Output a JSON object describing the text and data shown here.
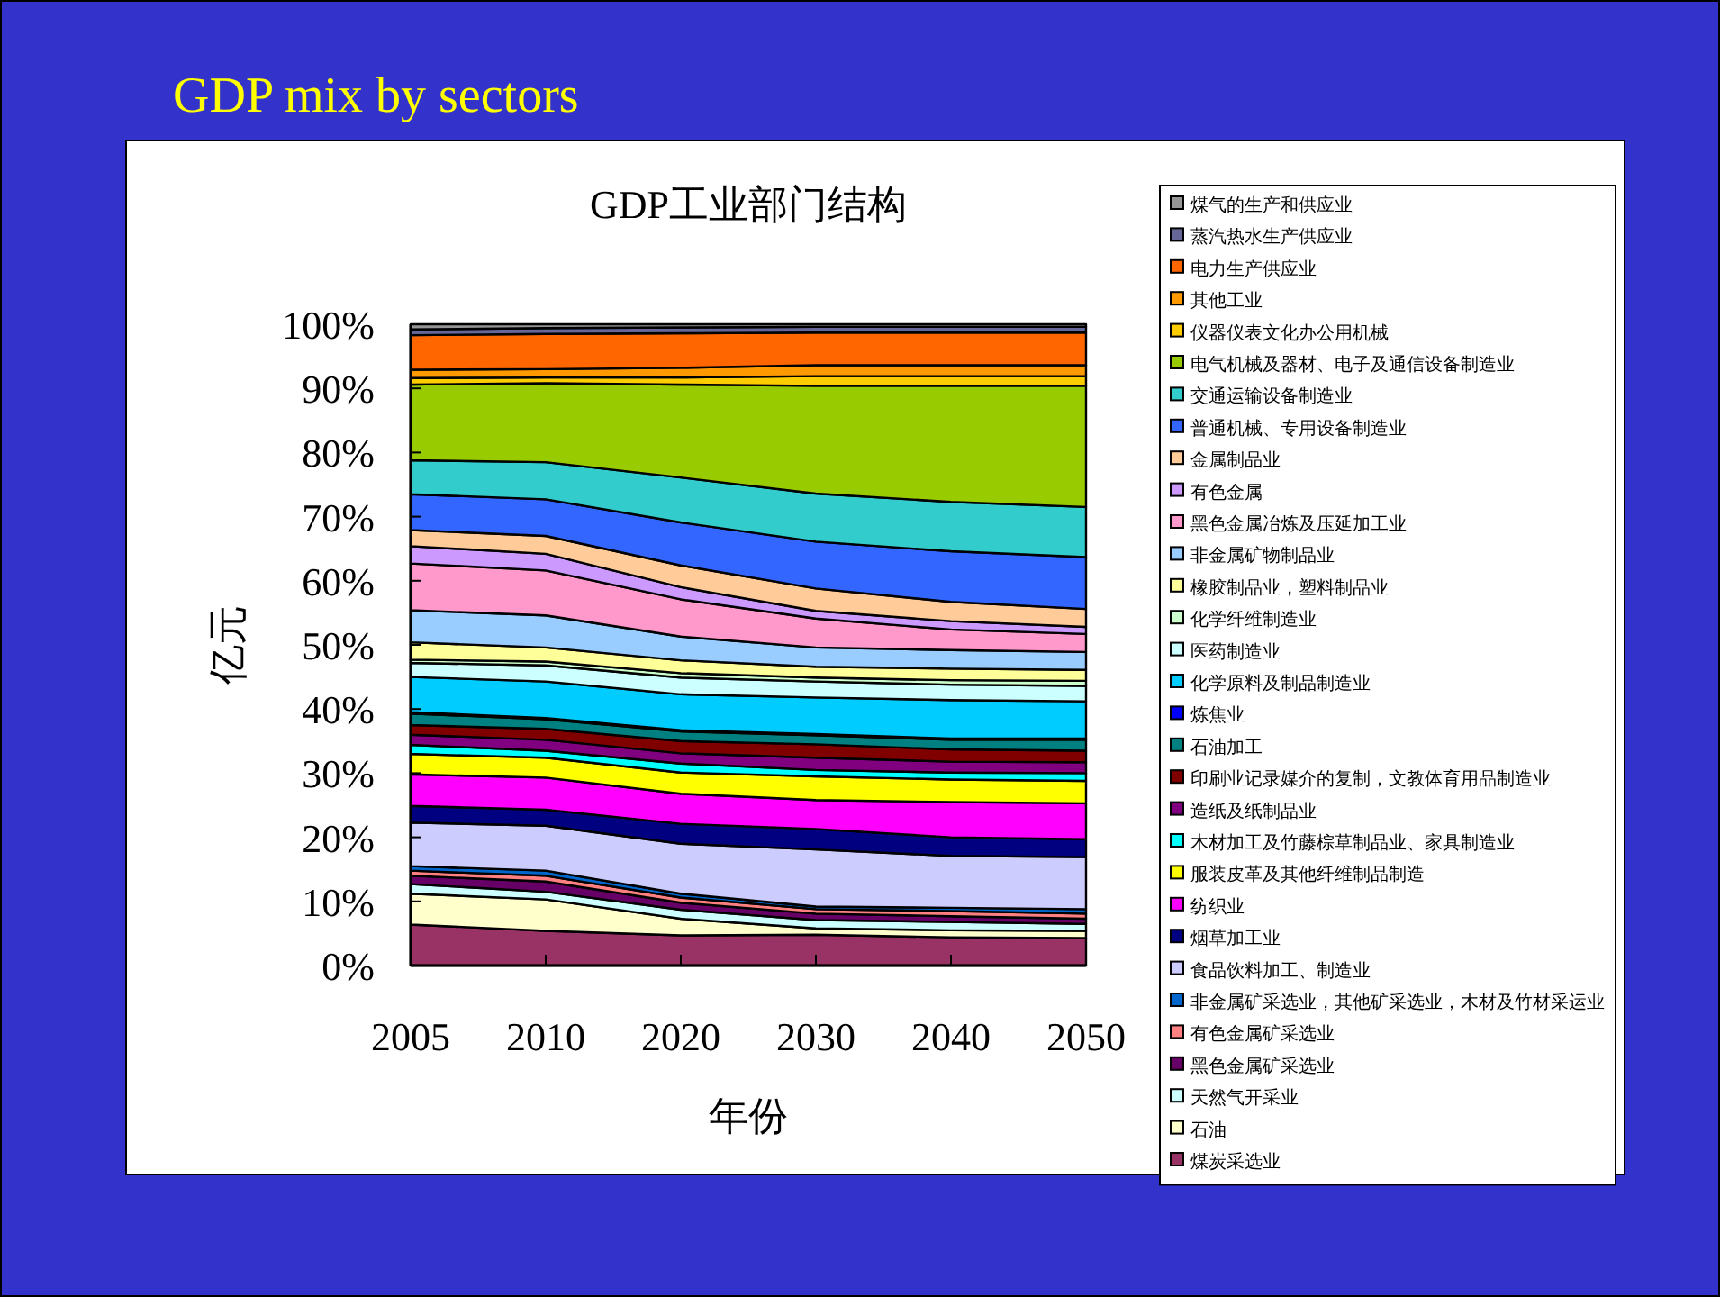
{
  "chart_data": {
    "type": "area",
    "title": "GDP mix by sectors",
    "subtitle": "GDP工业部门结构",
    "xlabel": "年份",
    "ylabel": "亿元",
    "categories": [
      "2005",
      "2010",
      "2020",
      "2030",
      "2040",
      "2050"
    ],
    "stacked": true,
    "legend": "right",
    "ylim": [
      0,
      100
    ],
    "yticks": [
      {
        "value": 0,
        "label": "0%"
      },
      {
        "value": 10,
        "label": "10%"
      },
      {
        "value": 20,
        "label": "20%"
      },
      {
        "value": 30,
        "label": "30%"
      },
      {
        "value": 40,
        "label": "40%"
      },
      {
        "value": 50,
        "label": "50%"
      },
      {
        "value": 60,
        "label": "60%"
      },
      {
        "value": 70,
        "label": "70%"
      },
      {
        "value": 80,
        "label": "80%"
      },
      {
        "value": 90,
        "label": "90%"
      },
      {
        "value": 100,
        "label": "100%"
      }
    ],
    "series": [
      {
        "name": "煤炭采选业",
        "color": "#993366",
        "values": [
          6.4,
          5.4,
          4.7,
          4.8,
          4.4,
          4.3
        ]
      },
      {
        "name": "石油",
        "color": "#ffffcc",
        "values": [
          4.8,
          4.9,
          2.6,
          1.0,
          1.1,
          1.1
        ]
      },
      {
        "name": "天然气开采业",
        "color": "#ccffff",
        "values": [
          1.5,
          1.2,
          1.4,
          1.3,
          1.3,
          1.1
        ]
      },
      {
        "name": "黑色金属矿采选业",
        "color": "#660066",
        "values": [
          1.3,
          1.6,
          1.1,
          1.0,
          0.9,
          0.8
        ]
      },
      {
        "name": "有色金属矿采选业",
        "color": "#ff8080",
        "values": [
          0.8,
          0.9,
          0.8,
          0.7,
          0.8,
          0.8
        ]
      },
      {
        "name": "非金属矿采选业，其他矿采选业，木材及竹材采运业",
        "color": "#0066cc",
        "values": [
          0.7,
          0.8,
          0.6,
          0.4,
          0.5,
          0.7
        ]
      },
      {
        "name": "食品饮料加工、制造业",
        "color": "#ccccff",
        "values": [
          6.8,
          7.0,
          7.8,
          8.9,
          8.1,
          8.1
        ]
      },
      {
        "name": "烟草加工业",
        "color": "#000080",
        "values": [
          2.6,
          2.5,
          3.1,
          3.2,
          2.9,
          2.8
        ]
      },
      {
        "name": "纺织业",
        "color": "#ff00ff",
        "values": [
          4.9,
          5.0,
          4.7,
          4.5,
          5.5,
          5.6
        ]
      },
      {
        "name": "服装皮革及其他纤维制品制造",
        "color": "#ffff00",
        "values": [
          3.2,
          3.1,
          3.3,
          3.7,
          3.5,
          3.5
        ]
      },
      {
        "name": "木材加工及竹藤棕草制品业、家具制造业",
        "color": "#00ffff",
        "values": [
          1.4,
          1.1,
          1.4,
          1.0,
          1.1,
          1.2
        ]
      },
      {
        "name": "造纸及纸制品业",
        "color": "#800080",
        "values": [
          1.6,
          1.7,
          1.6,
          1.9,
          1.7,
          1.7
        ]
      },
      {
        "name": "印刷业记录媒介的复制，文教体育用品制造业",
        "color": "#800000",
        "values": [
          1.5,
          1.7,
          1.9,
          2.1,
          1.9,
          1.8
        ]
      },
      {
        "name": "石油加工",
        "color": "#008080",
        "values": [
          1.8,
          1.5,
          1.5,
          1.4,
          1.5,
          1.7
        ]
      },
      {
        "name": "炼焦业",
        "color": "#0000ff",
        "values": [
          0.2,
          0.2,
          0.2,
          0.2,
          0.2,
          0.2
        ]
      },
      {
        "name": "化学原料及制品制造业",
        "color": "#00ccff",
        "values": [
          5.5,
          5.7,
          5.6,
          5.7,
          6.0,
          5.8
        ]
      },
      {
        "name": "医药制造业",
        "color": "#ccffff",
        "values": [
          2.2,
          2.5,
          2.6,
          2.5,
          2.4,
          2.4
        ]
      },
      {
        "name": "化学纤维制造业",
        "color": "#ccffcc",
        "values": [
          0.5,
          0.6,
          0.7,
          0.6,
          0.7,
          0.8
        ]
      },
      {
        "name": "橡胶制品业，塑料制品业",
        "color": "#ffff99",
        "values": [
          2.7,
          2.2,
          2.0,
          1.7,
          1.8,
          1.7
        ]
      },
      {
        "name": "非金属矿物制品业",
        "color": "#99ccff",
        "values": [
          5.0,
          5.0,
          3.7,
          3.0,
          2.9,
          2.8
        ]
      },
      {
        "name": "黑色金属冶炼及压延加工业",
        "color": "#ff99cc",
        "values": [
          7.3,
          7.0,
          5.8,
          4.5,
          3.2,
          2.8
        ]
      },
      {
        "name": "有色金属",
        "color": "#cc99ff",
        "values": [
          2.7,
          2.6,
          1.9,
          1.2,
          1.3,
          1.1
        ]
      },
      {
        "name": "金属制品业",
        "color": "#ffcc99",
        "values": [
          2.5,
          2.8,
          3.4,
          3.5,
          3.0,
          2.8
        ]
      },
      {
        "name": "普通机械、专用设备制造业",
        "color": "#3366ff",
        "values": [
          5.6,
          5.7,
          6.7,
          7.3,
          7.9,
          8.1
        ]
      },
      {
        "name": "交通运输设备制造业",
        "color": "#33cccc",
        "values": [
          5.3,
          5.8,
          7.0,
          7.5,
          7.7,
          7.8
        ]
      },
      {
        "name": "电气机械及器材、电子及通信设备制造业",
        "color": "#99cc00",
        "values": [
          11.8,
          12.3,
          14.5,
          16.8,
          18.1,
          18.9
        ]
      },
      {
        "name": "仪器仪表文化办公用机械",
        "color": "#ffcc00",
        "values": [
          1.0,
          0.9,
          1.1,
          1.5,
          1.5,
          1.5
        ]
      },
      {
        "name": "其他工业",
        "color": "#ff9900",
        "values": [
          1.3,
          1.3,
          1.5,
          1.7,
          1.7,
          1.7
        ]
      },
      {
        "name": "电力生产供应业",
        "color": "#ff6600",
        "values": [
          5.4,
          5.5,
          5.4,
          5.1,
          5.1,
          5.1
        ]
      },
      {
        "name": "蒸汽热水生产供应业",
        "color": "#666699",
        "values": [
          0.9,
          0.9,
          0.9,
          0.9,
          0.9,
          0.9
        ]
      },
      {
        "name": "煤气的生产和供应业",
        "color": "#969696",
        "values": [
          0.8,
          0.6,
          0.5,
          0.4,
          0.4,
          0.4
        ]
      }
    ]
  }
}
